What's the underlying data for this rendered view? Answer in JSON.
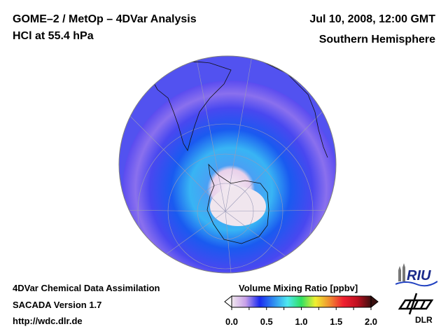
{
  "header": {
    "title_line1": "GOME–2 / MetOp – 4DVar Analysis",
    "title_line2": "HCl at 55.4 hPa",
    "datetime": "Jul 10, 2008, 12:00 GMT",
    "region": "Southern Hemisphere"
  },
  "footer": {
    "line1": "4DVar Chemical Data Assimilation",
    "line2": "SACADA Version 1.7",
    "line3": "http://wdc.dlr.de"
  },
  "colorbar": {
    "title": "Volume Mixing Ratio [ppbv]",
    "min": 0.0,
    "max": 2.0,
    "ticks": [
      "0.0",
      "0.5",
      "1.0",
      "1.5",
      "2.0"
    ],
    "colors": [
      "#f2e8ee",
      "#c8a0e8",
      "#1a2af0",
      "#2f8cf0",
      "#4ee8f0",
      "#30e060",
      "#f0f030",
      "#f09030",
      "#f02030",
      "#c01020",
      "#401010"
    ]
  },
  "map": {
    "projection": "orthographic",
    "hemisphere": "south",
    "ocean_tone": "#5a5af0"
  },
  "logos": {
    "riu": "RIU",
    "dlr": "DLR"
  }
}
